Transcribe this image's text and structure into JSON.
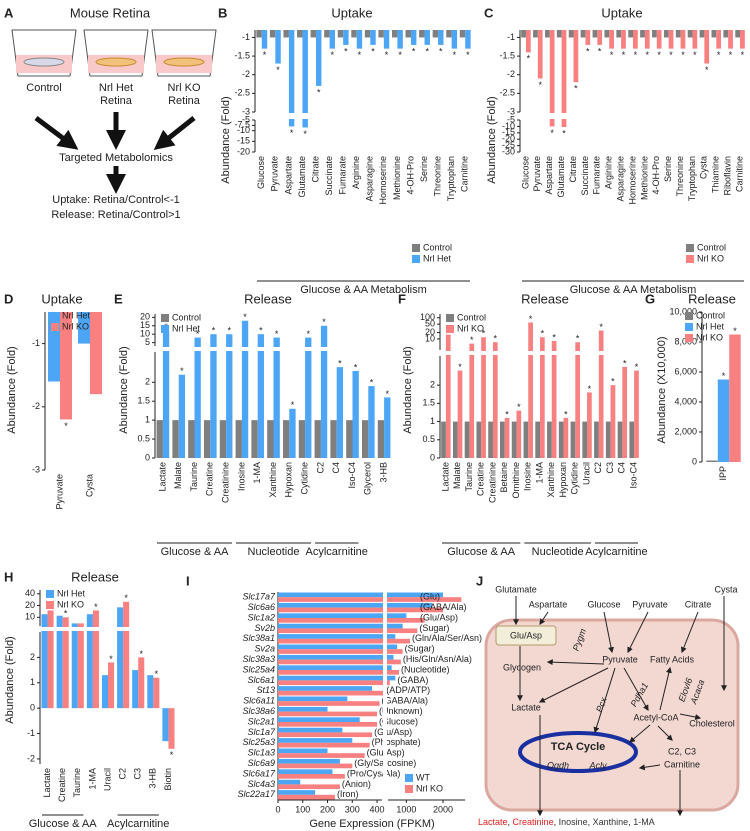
{
  "panel_a": {
    "panel": "A",
    "title": "Mouse Retina",
    "dishes": [
      {
        "lines": [
          "Control"
        ]
      },
      {
        "lines": [
          "Nrl Het",
          "Retina"
        ]
      },
      {
        "lines": [
          "Nrl KO",
          "Retina"
        ]
      }
    ],
    "method": "Targeted Metabolomics",
    "criteria": [
      "Uptake: Retina/Control<-1",
      "Release: Retina/Control>1"
    ]
  },
  "chart_data": [
    {
      "type": "bar",
      "panel": "B",
      "title": "Uptake",
      "ylabel": "Abundance (Fold)",
      "categories": [
        "Glucose",
        "Pyruvate",
        "Aspartate",
        "Glutamate",
        "Citrate",
        "Succinate",
        "Fumarate",
        "Arginine",
        "Asparagine",
        "Homoserine",
        "Methionine",
        "4-OH-Pro",
        "Serine",
        "Threonine",
        "Tryptophan",
        "Carnitine"
      ],
      "series": [
        {
          "name": "Control",
          "color": "#7f7f7f",
          "values": [
            -1,
            -1,
            -1,
            -1,
            -1,
            -1,
            -1,
            -1,
            -1,
            -1,
            -1,
            -1,
            -1,
            -1,
            -1,
            -1
          ]
        },
        {
          "name": "Nrl Het",
          "color": "#4da6f5",
          "values": [
            -1.3,
            -1.7,
            -8,
            -8.5,
            -2.3,
            -1.3,
            -1.2,
            -1.3,
            -1.2,
            -1.3,
            -1.3,
            -1.2,
            -1.2,
            -1.2,
            -1.3,
            -1.3
          ],
          "significance": [
            "*",
            "*",
            "*",
            "*",
            "*",
            "*",
            "*",
            "*",
            "*",
            "*",
            "*",
            "*",
            "*",
            "*",
            "*",
            "*"
          ]
        }
      ],
      "y_segments": [
        {
          "ylim": [
            -3,
            -0.8
          ],
          "yticks": [
            -1,
            -1.5,
            -2,
            -2.5,
            -3
          ]
        },
        {
          "ylim": [
            -20,
            -5
          ],
          "yticks": [
            -5,
            -7.5,
            -10,
            -15,
            -20
          ]
        }
      ],
      "groups": [
        {
          "label": "Glucose & AA Metabolism",
          "span": [
            0,
            15
          ]
        }
      ],
      "legend": "lower right"
    },
    {
      "type": "bar",
      "panel": "C",
      "title": "Uptake",
      "ylabel": "Abundance (Fold)",
      "categories": [
        "Glucose",
        "Pyruvate",
        "Aspartate",
        "Glutamate",
        "Citrate",
        "Succinate",
        "Fumarate",
        "Arginine",
        "Asparagine",
        "Homoserine",
        "Methionine",
        "4-OH-Pro",
        "Serine",
        "Threonine",
        "Tryptophan",
        "Cysta",
        "Thiamine",
        "Riboflavin",
        "Carnitine"
      ],
      "series": [
        {
          "name": "Control",
          "color": "#7f7f7f",
          "values": [
            -1,
            -1,
            -1,
            -1,
            -1,
            -1,
            -1,
            -1,
            -1,
            -1,
            -1,
            -1,
            -1,
            -1,
            -1,
            -1,
            -1,
            -1,
            -1
          ]
        },
        {
          "name": "Nrl KO",
          "color": "#f88080",
          "values": [
            -1.4,
            -2.1,
            -10,
            -10.5,
            -2.2,
            -1.2,
            -1.2,
            -1.3,
            -1.3,
            -1.3,
            -1.3,
            -1.3,
            -1.3,
            -1.3,
            -1.3,
            -1.7,
            -1.3,
            -1.3,
            -1.3
          ],
          "significance": [
            "*",
            "*",
            "*",
            "*",
            "*",
            "*",
            "*",
            "*",
            "*",
            "*",
            "*",
            "*",
            "*",
            "*",
            "*",
            "*",
            "*",
            "*",
            "*"
          ]
        }
      ],
      "y_segments": [
        {
          "ylim": [
            -3,
            -0.8
          ],
          "yticks": [
            -1,
            -1.5,
            -2,
            -2.5,
            -3
          ]
        },
        {
          "ylim": [
            -30,
            -5
          ],
          "yticks": [
            -5,
            -10,
            -15,
            -20,
            -25,
            -30
          ]
        }
      ],
      "groups": [
        {
          "label": "Glucose & AA Metabolism",
          "span": [
            0,
            18
          ]
        }
      ],
      "legend": "lower right"
    },
    {
      "type": "bar",
      "panel": "D",
      "title": "Uptake",
      "ylabel": "Abundance (Fold)",
      "categories": [
        "Pyruvate",
        "Cysta"
      ],
      "series": [
        {
          "name": "Nrl Het",
          "color": "#4da6f5",
          "values": [
            -1.6,
            -1.0
          ]
        },
        {
          "name": "Nrl KO",
          "color": "#f88080",
          "values": [
            -2.2,
            -1.8
          ],
          "significance": [
            "*",
            null
          ]
        }
      ],
      "ylim": [
        -3,
        -0.5
      ],
      "yticks": [
        -1,
        -2,
        -3
      ],
      "legend": "upper left"
    },
    {
      "type": "bar",
      "panel": "E",
      "title": "Release",
      "ylabel": "Abundance (Fold)",
      "categories": [
        "Lactate",
        "Malate",
        "Taurine",
        "Creatine",
        "Creatinine",
        "Inosine",
        "1-MA",
        "Xanthine",
        "Hypoxan",
        "Cytidine",
        "C2",
        "C4",
        "Iso-C4",
        "Glycerol",
        "3-HB"
      ],
      "series": [
        {
          "name": "Control",
          "color": "#7f7f7f",
          "values": [
            1,
            1,
            1,
            1,
            1,
            1,
            1,
            1,
            1,
            1,
            1,
            1,
            1,
            1,
            1
          ]
        },
        {
          "name": "Nrl Het",
          "color": "#4da6f5",
          "values": [
            12,
            2.2,
            8,
            10,
            10,
            18,
            10,
            8,
            1.3,
            8,
            15,
            2.4,
            2.3,
            1.9,
            1.6
          ],
          "significance": [
            "*",
            "*",
            "*",
            "*",
            "*",
            "*",
            "*",
            "*",
            "*",
            "*",
            "*",
            "*",
            "*",
            "*",
            "*"
          ]
        }
      ],
      "y_segments": [
        {
          "ylim": [
            3,
            22
          ],
          "yticks": [
            5,
            10,
            15,
            20
          ]
        },
        {
          "ylim": [
            0,
            2.8
          ],
          "yticks": [
            0,
            0.5,
            1,
            1.5,
            2
          ]
        }
      ],
      "groups": [
        {
          "label": "Glucose & AA",
          "span": [
            0,
            4
          ]
        },
        {
          "label": "Nucleotide",
          "span": [
            5,
            9
          ]
        },
        {
          "label": "Acylcarnitine",
          "span": [
            10,
            12
          ]
        }
      ],
      "legend": "upper left"
    },
    {
      "type": "bar",
      "panel": "F",
      "title": "Release",
      "ylabel": "Abundance (Fold)",
      "categories": [
        "Lactate",
        "Malate",
        "Taurine",
        "Creatine",
        "Creatinine",
        "Betaine",
        "Ornithine",
        "Inosine",
        "1-MA",
        "Xanthine",
        "Hypoxan",
        "Cytidine",
        "Uracil",
        "C2",
        "C3",
        "C4",
        "Iso-C4"
      ],
      "series": [
        {
          "name": "Control",
          "color": "#7f7f7f",
          "values": [
            1,
            1,
            1,
            1,
            1,
            1,
            1,
            1,
            1,
            1,
            1,
            1,
            1,
            1,
            1,
            1,
            1
          ]
        },
        {
          "name": "Nrl KO",
          "color": "#f88080",
          "values": [
            16,
            2.4,
            6,
            12,
            7,
            1.1,
            1.3,
            60,
            12,
            8,
            1.1,
            7,
            1.8,
            25,
            2.0,
            2.5,
            2.4
          ],
          "significance": [
            "*",
            "*",
            "*",
            "*",
            "*",
            "*",
            "*",
            "*",
            "*",
            "*",
            "*",
            "*",
            "*",
            "*",
            "*",
            "*",
            "*"
          ]
        }
      ],
      "y_segments": [
        {
          "ylim": [
            3,
            150
          ],
          "yticks": [
            10,
            20,
            50,
            100
          ],
          "log": true
        },
        {
          "ylim": [
            0,
            2.8
          ],
          "yticks": [
            0,
            0.5,
            1,
            1.5,
            2
          ]
        }
      ],
      "groups": [
        {
          "label": "Glucose & AA",
          "span": [
            0,
            6
          ]
        },
        {
          "label": "Nucleotide",
          "span": [
            7,
            12
          ]
        },
        {
          "label": "Acylcarnitine",
          "span": [
            13,
            16
          ]
        }
      ],
      "legend": "upper left"
    },
    {
      "type": "bar",
      "panel": "G",
      "title": "Release",
      "ylabel": "Abundance (X10,000)",
      "categories": [
        "IPP"
      ],
      "series": [
        {
          "name": "Control",
          "color": "#7f7f7f",
          "values": [
            100
          ]
        },
        {
          "name": "Nrl Het",
          "color": "#4da6f5",
          "values": [
            5500
          ],
          "significance": [
            "*"
          ]
        },
        {
          "name": "Nrl KO",
          "color": "#f88080",
          "values": [
            8500
          ],
          "significance": [
            "*"
          ]
        }
      ],
      "ylim": [
        0,
        10000
      ],
      "yticks": [
        0,
        {
          "value": 2000,
          "label": "2,000"
        },
        {
          "value": 4000,
          "label": "4,000"
        },
        {
          "value": 6000,
          "label": "6,000"
        },
        {
          "value": 8000,
          "label": "8,000"
        },
        {
          "value": 10000,
          "label": "10,000"
        }
      ],
      "legend": "upper right"
    },
    {
      "type": "bar",
      "panel": "H",
      "title": "Release",
      "ylabel": "Abundance (Fold)",
      "categories": [
        "Lactate",
        "Creatine",
        "Taurine",
        "1-MA",
        "Uracil",
        "C2",
        "C3",
        "3-HB",
        "Biotin"
      ],
      "series": [
        {
          "name": "Nrl Het",
          "color": "#4da6f5",
          "values": [
            12,
            11,
            7,
            12,
            1.3,
            18,
            1.5,
            1.3,
            -1.3
          ]
        },
        {
          "name": "Nrl KO",
          "color": "#f88080",
          "values": [
            15,
            10,
            7,
            15,
            1.8,
            25,
            2.0,
            1.2,
            -1.6
          ],
          "significance": [
            "*",
            "*",
            null,
            "*",
            "*",
            "*",
            "*",
            "*",
            "*"
          ]
        }
      ],
      "y_segments": [
        {
          "ylim": [
            6,
            50
          ],
          "yticks": [
            10,
            20,
            40
          ],
          "log": true
        },
        {
          "ylim": [
            -2.2,
            3
          ],
          "yticks": [
            -2,
            -1,
            0,
            1,
            2
          ]
        }
      ],
      "groups": [
        {
          "label": "Glucose & AA",
          "span": [
            0,
            2
          ]
        },
        {
          "label": "Acylcarnitine",
          "span": [
            5,
            7
          ]
        }
      ],
      "legend": "upper left"
    },
    {
      "type": "barh",
      "panel": "I",
      "xlabel": "Gene Expression (FPKM)",
      "categories": [
        "Slc17a7",
        "Slc6a6",
        "Slc1a2",
        "Sv2b",
        "Slc38a1",
        "Sv2a",
        "Slc38a3",
        "Slc25a4",
        "Slc6a1",
        "St13",
        "Slc6a11",
        "Slc38a6",
        "Slc2a1",
        "Slc1a7",
        "Slc25a3",
        "Slc1a3",
        "Slc6a9",
        "Slc6a17",
        "Slc4a3",
        "Slc22a17"
      ],
      "annotations": [
        "(Glu)",
        "(GABA/Ala)",
        "(Glu/Asp)",
        "(Sugar)",
        "(Gln/Ala/Ser/Asn)",
        "(Sugar)",
        "(His/Gln/Asn/Ala)",
        "(Nucleotide)",
        "(GABA)",
        "(ADP/ATP)",
        "(GABA/Ala)",
        "(Unknown)",
        "(Glucose)",
        "(Glu/Asp)",
        "(Phosphate)",
        "(Glu/Asp)",
        "(Gly/Sarcosine)",
        "(Pro/Cys/Ala)",
        "(Anion)",
        "(Iron)"
      ],
      "annotation_colors": [
        "#9b30c8",
        "#222",
        "#9b30c8",
        "#222",
        "#222",
        "#222",
        "#222",
        "#222",
        "#222",
        "#222",
        "#222",
        "#222",
        "#222",
        "#9b30c8",
        "#222",
        "#9b30c8",
        "#222",
        "#222",
        "#222",
        "#222"
      ],
      "series": [
        {
          "name": "WT",
          "color": "#4da6f5",
          "values": [
            2000,
            1700,
            1000,
            900,
            700,
            750,
            650,
            600,
            700,
            380,
            280,
            200,
            330,
            260,
            300,
            200,
            250,
            220,
            90,
            150
          ]
        },
        {
          "name": "Nrl KO",
          "color": "#f88080",
          "values": [
            2500,
            2000,
            1500,
            1300,
            1100,
            900,
            850,
            800,
            550,
            450,
            410,
            400,
            400,
            380,
            370,
            350,
            300,
            270,
            250,
            230
          ]
        }
      ],
      "x_segments": [
        {
          "xlim": [
            0,
            420
          ],
          "xticks": [
            0,
            100,
            200,
            300,
            400
          ]
        },
        {
          "xlim": [
            500,
            2600
          ],
          "xticks": [
            1000,
            2000
          ]
        }
      ],
      "legend": "lower right"
    }
  ],
  "panel_j": {
    "panel": "J",
    "nodes": [
      {
        "text": "Glutamate"
      },
      {
        "text": "Aspartate"
      },
      {
        "text": "Glucose"
      },
      {
        "text": "Pyruvate"
      },
      {
        "text": "Citrate",
        "color": "#e02020"
      },
      {
        "text": "Cysta",
        "color": "#e02020"
      },
      {
        "text": "Glu/Asp",
        "color": "#9b30c8"
      },
      {
        "text": "Glycogen"
      },
      {
        "text": "Pyruvate"
      },
      {
        "text": "Fatty Acids"
      },
      {
        "text": "Cholesterol"
      },
      {
        "text": "Lactate"
      },
      {
        "text": "Acetyl-CoA"
      },
      {
        "text": "TCA Cycle",
        "color": "#1a2fa0"
      },
      {
        "text": "C2, C3"
      },
      {
        "text": "Carnitine"
      }
    ],
    "enzymes": [
      "Pygm",
      "Pdha1",
      "Elovl6",
      "Acaca",
      "Pcx",
      "Ogdh",
      "Acly"
    ],
    "enzyme_color": "#8b5a2b",
    "outputs": [
      "Lactate",
      "Creatinine",
      "Inosine",
      "Xanthine",
      "1-MA"
    ],
    "output_colors": [
      "#e02020",
      "#e02020",
      "#333333",
      "#333333",
      "#333333"
    ],
    "separator": ", "
  }
}
